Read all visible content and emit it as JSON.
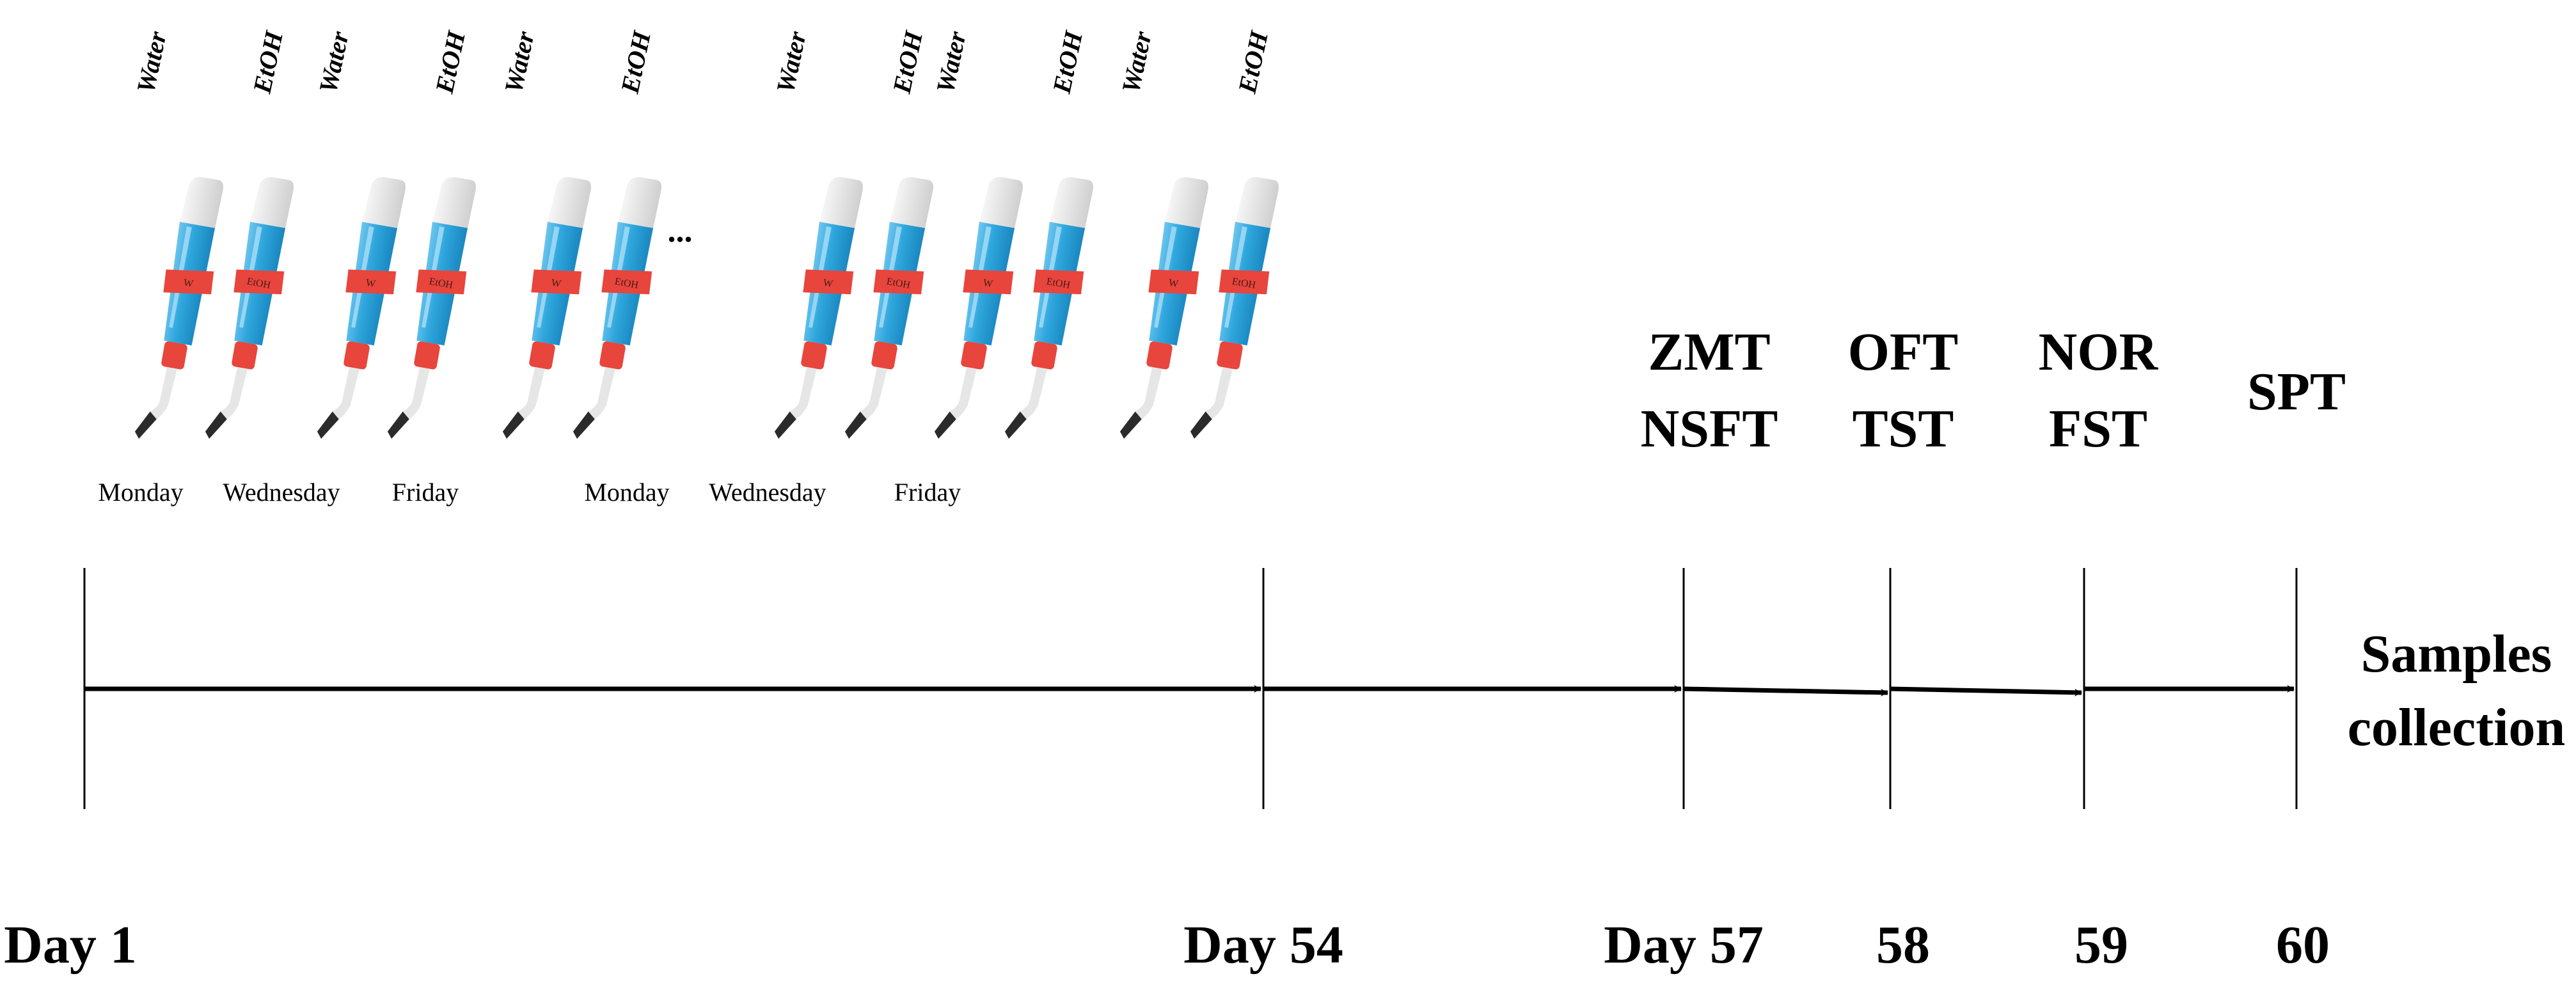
{
  "bottle_pairs": [
    {
      "labels": [
        "Water",
        "EtOH"
      ]
    },
    {
      "labels": [
        "Water",
        "EtOH"
      ]
    },
    {
      "labels": [
        "Water",
        "EtOH"
      ]
    },
    {
      "labels": [
        "Water",
        "EtOH"
      ]
    },
    {
      "labels": [
        "Water",
        "EtOH"
      ]
    },
    {
      "labels": [
        "Water",
        "EtOH"
      ]
    }
  ],
  "bottle_tag_texts": [
    "W",
    "EtOH"
  ],
  "ellipsis": "...",
  "weekdays": [
    "Monday",
    "Wednesday",
    "Friday",
    "Monday",
    "Wednesday",
    "Friday"
  ],
  "timeline": {
    "markers": [
      {
        "day_label": "Day 1",
        "tests": []
      },
      {
        "day_label": "Day 54",
        "tests": []
      },
      {
        "day_label": "Day 57",
        "tests": [
          "ZMT",
          "NSFT"
        ]
      },
      {
        "day_label": "58",
        "tests": [
          "OFT",
          "TST"
        ]
      },
      {
        "day_label": "59",
        "tests": [
          "NOR",
          "FST"
        ]
      },
      {
        "day_label": "60",
        "tests": [
          "SPT"
        ]
      }
    ],
    "end_label": [
      "Samples",
      "collection"
    ]
  },
  "colors": {
    "bottle_blue": "#2ea6dc",
    "bottle_cap": "#e0e0e0",
    "tag_red": "#e8453c",
    "spout_gray": "#cfcfcf",
    "tip_dark": "#2b2b2b",
    "line": "#000000"
  }
}
